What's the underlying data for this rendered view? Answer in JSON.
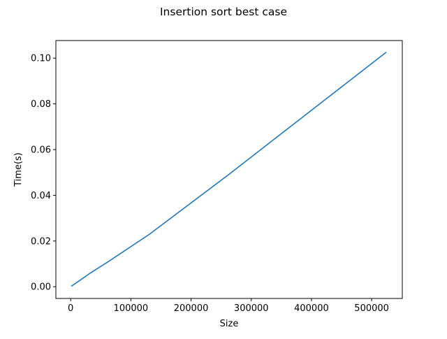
{
  "chart_data": {
    "type": "line",
    "title": "Insertion sort best case",
    "xlabel": "Size",
    "ylabel": "Time(s)",
    "xlim": [
      -24576,
      550912
    ],
    "ylim": [
      -0.00513,
      0.1077
    ],
    "xticks": [
      0,
      100000,
      200000,
      300000,
      400000,
      500000
    ],
    "xtick_labels": [
      "0",
      "100000",
      "200000",
      "300000",
      "400000",
      "500000"
    ],
    "yticks": [
      0.0,
      0.02,
      0.04,
      0.06,
      0.08,
      0.1
    ],
    "ytick_labels": [
      "0.00",
      "0.02",
      "0.04",
      "0.06",
      "0.08",
      "0.10"
    ],
    "grid": false,
    "legend": "none",
    "series": [
      {
        "color": "#1f77b4",
        "x": [
          1024,
          2048,
          4096,
          8192,
          16384,
          32768,
          65536,
          131072,
          262144,
          524288
        ],
        "y": [
          0.0002,
          0.0004,
          0.0008,
          0.0015,
          0.003,
          0.006,
          0.0115,
          0.023,
          0.049,
          0.1026
        ]
      }
    ]
  }
}
